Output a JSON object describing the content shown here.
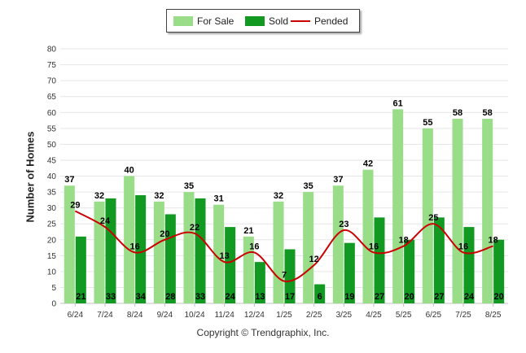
{
  "chart_data": {
    "type": "bar",
    "categories": [
      "6/24",
      "7/24",
      "8/24",
      "9/24",
      "10/24",
      "11/24",
      "12/24",
      "1/25",
      "2/25",
      "3/25",
      "4/25",
      "5/25",
      "6/25",
      "7/25",
      "8/25"
    ],
    "series": [
      {
        "name": "For Sale",
        "type": "bar",
        "color": "#99dd88",
        "values": [
          37,
          32,
          40,
          32,
          35,
          31,
          21,
          32,
          35,
          37,
          42,
          61,
          55,
          58,
          58
        ]
      },
      {
        "name": "Sold",
        "type": "bar",
        "color": "#119922",
        "values": [
          21,
          33,
          34,
          28,
          33,
          24,
          13,
          17,
          6,
          19,
          27,
          20,
          27,
          24,
          20
        ]
      },
      {
        "name": "Pended",
        "type": "line",
        "color": "#cc0000",
        "values": [
          29,
          24,
          16,
          20,
          22,
          13,
          16,
          7,
          12,
          23,
          16,
          18,
          25,
          16,
          18
        ]
      }
    ],
    "ylabel": "Number of Homes",
    "xlabel": "",
    "ylim": [
      0,
      80
    ],
    "yticks": [
      0,
      5,
      10,
      15,
      20,
      25,
      30,
      35,
      40,
      45,
      50,
      55,
      60,
      65,
      70,
      75,
      80
    ],
    "grid": true,
    "legend_position": "top-center"
  },
  "footer": {
    "copyright": "Copyright © Trendgraphix, Inc."
  }
}
